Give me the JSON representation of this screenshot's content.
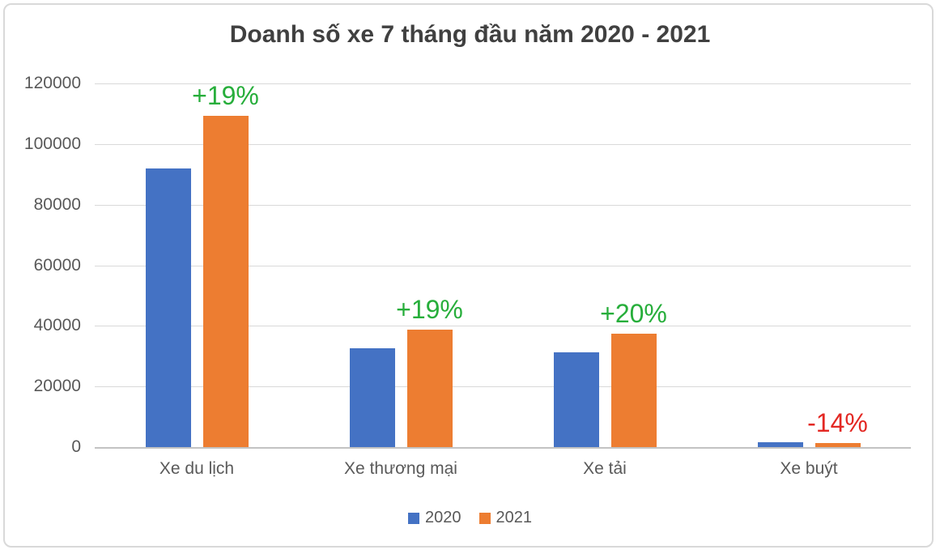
{
  "chart_data": {
    "type": "bar",
    "title": "Doanh số xe 7 tháng đầu năm 2020 - 2021",
    "categories": [
      "Xe du lịch",
      "Xe thương mại",
      "Xe tải",
      "Xe buýt"
    ],
    "series": [
      {
        "name": "2020",
        "color": "#4472C4",
        "values": [
          92000,
          32500,
          31200,
          1500
        ]
      },
      {
        "name": "2021",
        "color": "#ED7D31",
        "values": [
          109300,
          38700,
          37500,
          1290
        ]
      }
    ],
    "annotations": [
      {
        "category": "Xe du lịch",
        "label": "+19%",
        "color": "#27AE3B"
      },
      {
        "category": "Xe thương mại",
        "label": "+19%",
        "color": "#27AE3B"
      },
      {
        "category": "Xe tải",
        "label": "+20%",
        "color": "#27AE3B"
      },
      {
        "category": "Xe buýt",
        "label": "-14%",
        "color": "#E32823"
      }
    ],
    "xlabel": "",
    "ylabel": "",
    "ylim": [
      0,
      120000
    ],
    "ytick_step": 20000,
    "yticks": [
      0,
      20000,
      40000,
      60000,
      80000,
      100000,
      120000
    ],
    "grid": true,
    "legend_position": "bottom",
    "colors": {
      "gridline": "#D9D9D9",
      "axis_line": "#C3C3C3",
      "axis_text": "#595959",
      "title_text": "#404040"
    }
  }
}
